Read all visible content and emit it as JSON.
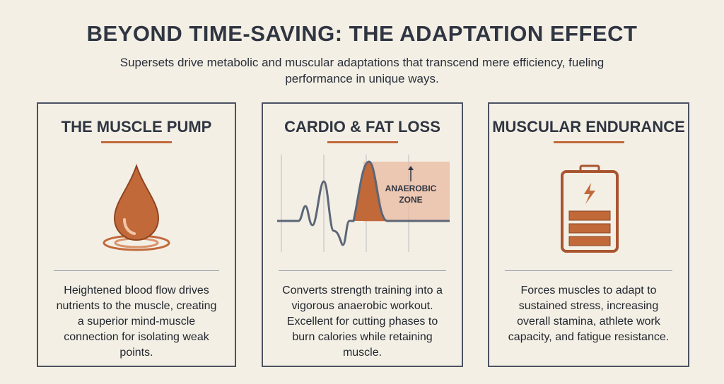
{
  "header": {
    "title": "BEYOND TIME-SAVING: THE ADAPTATION EFFECT",
    "subtitle": "Supersets drive metabolic and muscular adaptations that transcend mere efficiency, fueling performance in unique ways."
  },
  "cards": [
    {
      "title": "THE MUSCLE PUMP",
      "text": "Heightened blood flow drives nutrients to the muscle, creating a superior mind-muscle connection for isolating weak points."
    },
    {
      "title": "CARDIO & FAT LOSS",
      "zone_label": "ANAEROBIC ZONE",
      "text": "Converts strength training into a vigorous anaerobic workout. Excellent for cutting phases to burn calories while retaining muscle."
    },
    {
      "title": "MUSCULAR ENDURANCE",
      "text": "Forces muscles to adapt to sustained stress, increasing overall stamina, athlete work capacity, and fatigue resistance."
    }
  ]
}
